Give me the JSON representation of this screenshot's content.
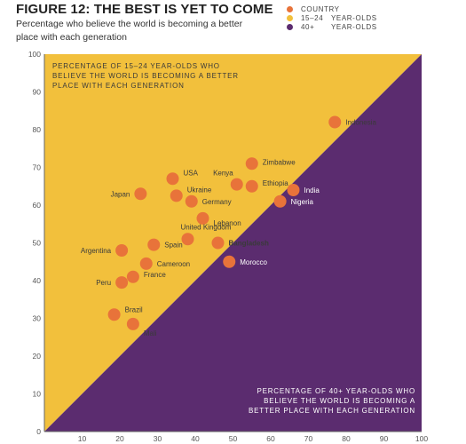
{
  "figure": {
    "title": "FIGURE 12: THE BEST IS YET TO COME",
    "subtitle_line1": "Percentage who believe the world is becoming a better",
    "subtitle_line2": "place with each generation"
  },
  "legend": {
    "items": [
      {
        "label": "COUNTRY",
        "group": "",
        "color": "#E8733A"
      },
      {
        "label": "15–24",
        "group": "YEAR-OLDS",
        "color": "#F2C03C"
      },
      {
        "label": "40+",
        "group": "YEAR-OLDS",
        "color": "#5B2C6F"
      }
    ]
  },
  "colors": {
    "young_region": "#F2C03C",
    "old_region": "#5B2C6F",
    "dot": "#E8733A",
    "label_dark": "#3a3a3a",
    "label_light": "#ffffff"
  },
  "chart_data": {
    "type": "scatter",
    "xlim": [
      0,
      100
    ],
    "ylim": [
      0,
      100
    ],
    "xticks": [
      10,
      20,
      30,
      40,
      50,
      60,
      70,
      80,
      90,
      100
    ],
    "yticks": [
      0,
      10,
      20,
      30,
      40,
      50,
      60,
      70,
      80,
      90,
      100
    ],
    "region_labels": {
      "upper_left": [
        "PERCENTAGE OF 15–24 YEAR-OLDS WHO",
        "BELIEVE THE WORLD IS BECOMING A BETTER",
        "PLACE WITH EACH GENERATION"
      ],
      "lower_right": [
        "PERCENTAGE OF 40+ YEAR-OLDS WHO",
        "BELIEVE THE WORLD IS BECOMING A",
        "BETTER PLACE WITH EACH GENERATION"
      ]
    },
    "points": [
      {
        "name": "Indonesia",
        "x": 77,
        "y": 82
      },
      {
        "name": "Zimbabwe",
        "x": 55,
        "y": 71
      },
      {
        "name": "Kenya",
        "x": 51,
        "y": 65.5
      },
      {
        "name": "Ethiopia",
        "x": 55,
        "y": 65
      },
      {
        "name": "India",
        "x": 66,
        "y": 64
      },
      {
        "name": "Nigeria",
        "x": 62.5,
        "y": 61
      },
      {
        "name": "USA",
        "x": 34,
        "y": 67
      },
      {
        "name": "Ukraine",
        "x": 35,
        "y": 62.5
      },
      {
        "name": "Japan",
        "x": 25.5,
        "y": 63
      },
      {
        "name": "Germany",
        "x": 39,
        "y": 61
      },
      {
        "name": "Lebanon",
        "x": 42,
        "y": 56.5
      },
      {
        "name": "United Kingdom",
        "x": 38,
        "y": 51
      },
      {
        "name": "Spain",
        "x": 29,
        "y": 49.5
      },
      {
        "name": "Bangladesh",
        "x": 46,
        "y": 50
      },
      {
        "name": "Argentina",
        "x": 20.5,
        "y": 48
      },
      {
        "name": "Cameroon",
        "x": 27,
        "y": 44.5
      },
      {
        "name": "Morocco",
        "x": 49,
        "y": 45
      },
      {
        "name": "France",
        "x": 23.5,
        "y": 41
      },
      {
        "name": "Peru",
        "x": 20.5,
        "y": 39.5
      },
      {
        "name": "Brazil",
        "x": 18.5,
        "y": 31
      },
      {
        "name": "Mali",
        "x": 23.5,
        "y": 28.5
      }
    ]
  }
}
